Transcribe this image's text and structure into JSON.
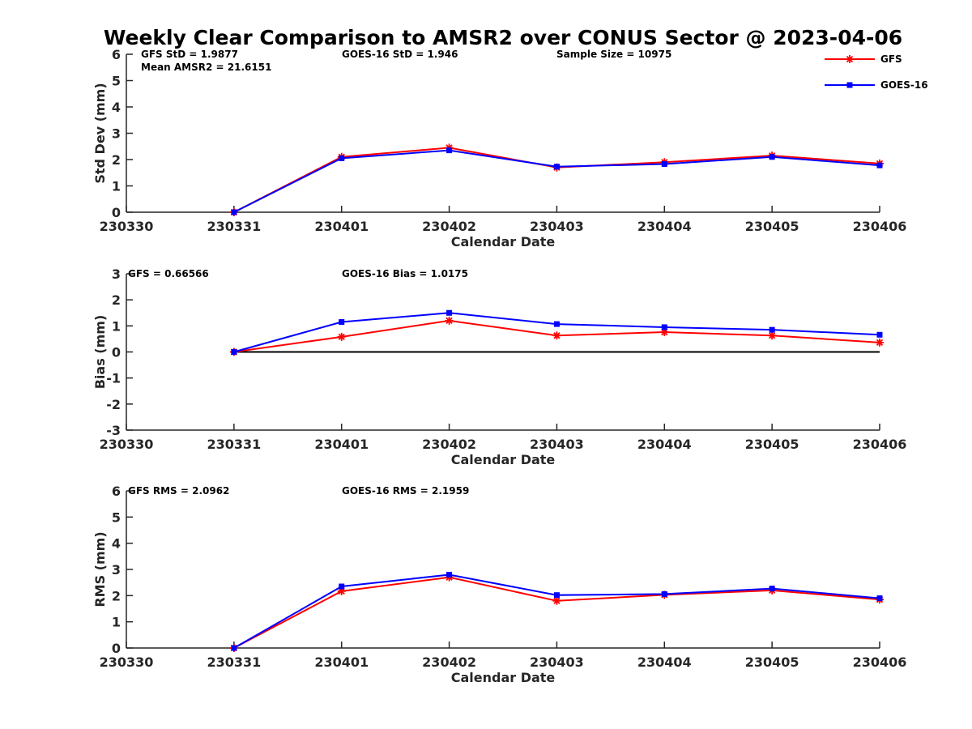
{
  "title": "Weekly Clear Comparison to AMSR2 over CONUS Sector @ 2023-04-06",
  "legend": {
    "placement": "top-right",
    "items": [
      {
        "label": "GFS",
        "color": "#ff0000",
        "marker": "asterisk"
      },
      {
        "label": "GOES-16",
        "color": "#0000ff",
        "marker": "square"
      }
    ]
  },
  "chart_data": [
    {
      "type": "line",
      "title": "",
      "xlabel": "Calendar Date",
      "ylabel": "Std Dev (mm)",
      "x": [
        "230330",
        "230331",
        "230401",
        "230402",
        "230403",
        "230404",
        "230405",
        "230406"
      ],
      "ylim": [
        0,
        6
      ],
      "yticks": [
        0,
        1,
        2,
        3,
        4,
        5,
        6
      ],
      "grid": false,
      "annotations": [
        {
          "text": "GFS StD = 1.9877",
          "pos": "top-left"
        },
        {
          "text": "Mean AMSR2 = 21.6151",
          "pos": "top-left-second"
        },
        {
          "text": "GOES-16 StD = 1.946",
          "pos": "top-center"
        },
        {
          "text": "Sample Size = 10975",
          "pos": "top-right"
        }
      ],
      "series": [
        {
          "name": "GFS",
          "color": "#ff0000",
          "marker": "asterisk",
          "x": [
            "230331",
            "230401",
            "230402",
            "230403",
            "230404",
            "230405",
            "230406"
          ],
          "values": [
            0.0,
            2.1,
            2.45,
            1.7,
            1.9,
            2.15,
            1.85
          ]
        },
        {
          "name": "GOES-16",
          "color": "#0000ff",
          "marker": "square",
          "x": [
            "230331",
            "230401",
            "230402",
            "230403",
            "230404",
            "230405",
            "230406"
          ],
          "values": [
            0.0,
            2.05,
            2.35,
            1.73,
            1.83,
            2.1,
            1.78
          ]
        }
      ]
    },
    {
      "type": "line",
      "title": "",
      "xlabel": "Calendar Date",
      "ylabel": "Bias (mm)",
      "x": [
        "230330",
        "230331",
        "230401",
        "230402",
        "230403",
        "230404",
        "230405",
        "230406"
      ],
      "ylim": [
        -3,
        3
      ],
      "yticks": [
        -3,
        -2,
        -1,
        0,
        1,
        2,
        3
      ],
      "grid": false,
      "zero_line": true,
      "annotations": [
        {
          "text": "GFS = 0.66566",
          "pos": "top-left"
        },
        {
          "text": "GOES-16 Bias  = 1.0175",
          "pos": "top-center"
        }
      ],
      "series": [
        {
          "name": "GFS",
          "color": "#ff0000",
          "marker": "asterisk",
          "x": [
            "230331",
            "230401",
            "230402",
            "230403",
            "230404",
            "230405",
            "230406"
          ],
          "values": [
            0.0,
            0.58,
            1.2,
            0.63,
            0.76,
            0.63,
            0.36
          ]
        },
        {
          "name": "GOES-16",
          "color": "#0000ff",
          "marker": "square",
          "x": [
            "230331",
            "230401",
            "230402",
            "230403",
            "230404",
            "230405",
            "230406"
          ],
          "values": [
            0.0,
            1.15,
            1.5,
            1.07,
            0.95,
            0.85,
            0.66
          ]
        }
      ]
    },
    {
      "type": "line",
      "title": "",
      "xlabel": "Calendar Date",
      "ylabel": "RMS (mm)",
      "x": [
        "230330",
        "230331",
        "230401",
        "230402",
        "230403",
        "230404",
        "230405",
        "230406"
      ],
      "ylim": [
        0,
        6
      ],
      "yticks": [
        0,
        1,
        2,
        3,
        4,
        5,
        6
      ],
      "grid": false,
      "annotations": [
        {
          "text": "GFS RMS = 2.0962",
          "pos": "top-left"
        },
        {
          "text": "GOES-16 RMS = 2.1959",
          "pos": "top-center"
        }
      ],
      "series": [
        {
          "name": "GFS",
          "color": "#ff0000",
          "marker": "asterisk",
          "x": [
            "230331",
            "230401",
            "230402",
            "230403",
            "230404",
            "230405",
            "230406"
          ],
          "values": [
            0.0,
            2.17,
            2.7,
            1.8,
            2.03,
            2.2,
            1.85
          ]
        },
        {
          "name": "GOES-16",
          "color": "#0000ff",
          "marker": "square",
          "x": [
            "230331",
            "230401",
            "230402",
            "230403",
            "230404",
            "230405",
            "230406"
          ],
          "values": [
            0.0,
            2.35,
            2.8,
            2.02,
            2.06,
            2.27,
            1.9
          ]
        }
      ]
    }
  ]
}
